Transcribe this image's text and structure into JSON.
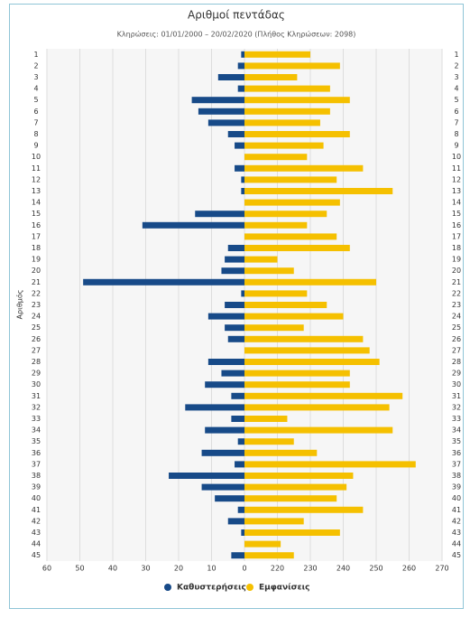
{
  "chart_data": {
    "type": "butterfly-bar",
    "title": "Αριθμοί πεντάδας",
    "subtitle": "Κληρώσεις: 01/01/2000 – 20/02/2020 (Πλήθος Κληρώσεων: 2098)",
    "y_label": "Αριθμός",
    "categories": [
      "1",
      "2",
      "3",
      "4",
      "5",
      "6",
      "7",
      "8",
      "9",
      "10",
      "11",
      "12",
      "13",
      "14",
      "15",
      "16",
      "17",
      "18",
      "19",
      "20",
      "21",
      "22",
      "23",
      "24",
      "25",
      "26",
      "27",
      "28",
      "29",
      "30",
      "31",
      "32",
      "33",
      "34",
      "35",
      "36",
      "37",
      "38",
      "39",
      "40",
      "41",
      "42",
      "43",
      "44",
      "45"
    ],
    "series": [
      {
        "name": "Καθυστερήσεις",
        "color": "#174a88",
        "axis": "x",
        "values": [
          1,
          2,
          8,
          2,
          16,
          14,
          11,
          5,
          3,
          0,
          3,
          1,
          1,
          0,
          15,
          31,
          0,
          5,
          6,
          7,
          49,
          1,
          6,
          11,
          6,
          5,
          0,
          11,
          7,
          12,
          4,
          18,
          4,
          12,
          2,
          13,
          3,
          23,
          13,
          9,
          2,
          5,
          1,
          0,
          4
        ]
      },
      {
        "name": "Εμφανίσεις",
        "color": "#f5c000",
        "axis": "x2",
        "values": [
          230,
          239,
          226,
          236,
          242,
          236,
          233,
          242,
          234,
          229,
          246,
          238,
          255,
          239,
          235,
          229,
          238,
          242,
          220,
          225,
          250,
          229,
          235,
          240,
          228,
          246,
          248,
          251,
          242,
          242,
          258,
          254,
          223,
          255,
          225,
          232,
          262,
          243,
          241,
          238,
          246,
          228,
          239,
          221,
          225
        ]
      }
    ],
    "xlim": [
      0,
      60
    ],
    "xticks": [
      0,
      10,
      20,
      30,
      40,
      50,
      60
    ],
    "x2lim": [
      210,
      270
    ],
    "x2ticks": [
      220,
      230,
      240,
      250,
      260,
      270
    ],
    "grid": true
  }
}
